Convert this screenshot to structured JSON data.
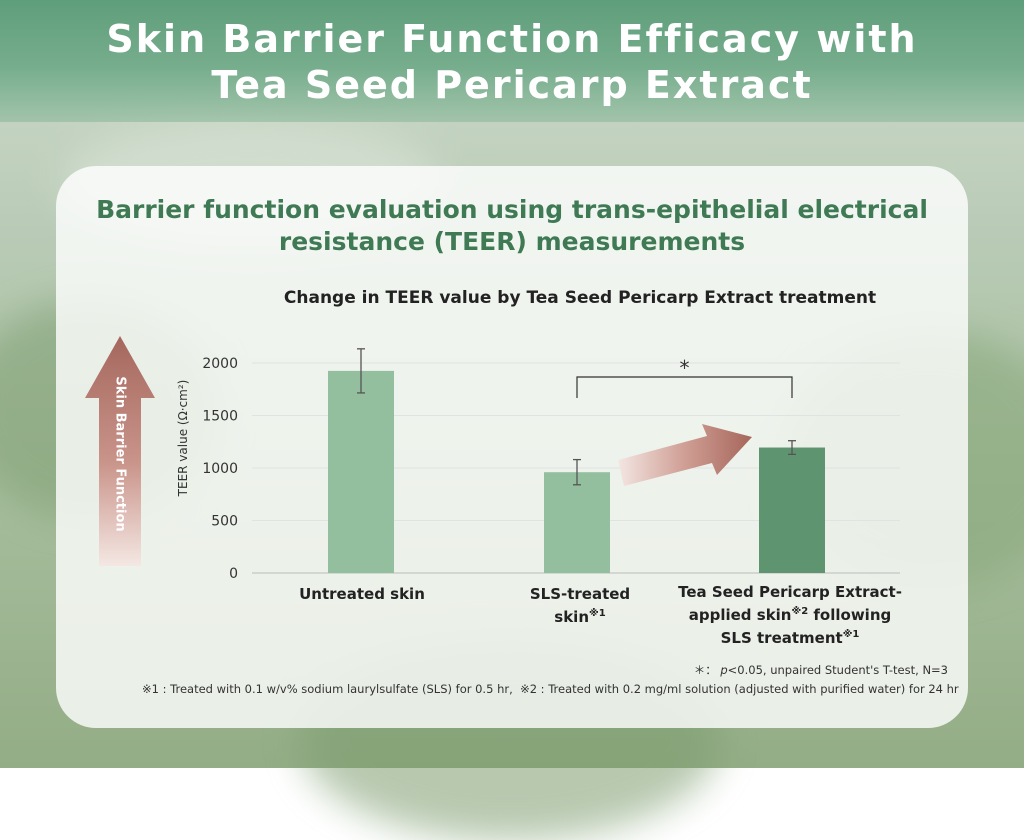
{
  "header": {
    "title_line1": "Skin Barrier Function Efficacy with",
    "title_line2": "Tea Seed Pericarp Extract"
  },
  "card": {
    "title_line1": "Barrier function evaluation using trans-epithelial electrical",
    "title_line2": "resistance (TEER) measurements"
  },
  "side_arrow_label": "Skin Barrier Function",
  "colors": {
    "light_bar": "#94bf9e",
    "dark_bar": "#5e9470",
    "title_green": "#3f7a55",
    "arrow": "#b06a5e"
  },
  "chart_data": {
    "type": "bar",
    "title": "Change in TEER value by Tea Seed Pericarp Extract treatment",
    "ylabel": "TEER value (Ω·cm²)",
    "ylim": [
      0,
      2000
    ],
    "yticks": [
      "0",
      "500",
      "1000",
      "1500",
      "2000"
    ],
    "categories": [
      "Untreated skin",
      "SLS-treated skin",
      "Tea Seed Pericarp Extract-applied skin following SLS treatment"
    ],
    "values": [
      1925,
      960,
      1195
    ],
    "errors": [
      210,
      120,
      65
    ],
    "significance": {
      "from": 1,
      "to": 2,
      "label": "*"
    }
  },
  "category_labels": {
    "c1": "Untreated skin",
    "c2_line1": "SLS-treated",
    "c2_line2": "skin",
    "c2_mark": "※1",
    "c3_line1": "Tea Seed Pericarp Extract-",
    "c3_line2": "applied skin",
    "c3_mark2": "※2",
    "c3_line2b": " following",
    "c3_line3": "SLS treatment",
    "c3_mark3": "※1"
  },
  "footnotes": {
    "stat_prefix": "＊：",
    "stat_p": "p",
    "stat_rest": "<0.05, unpaired Student's T-test, N=3",
    "note1": "※1 : Treated with 0.1 w/v% sodium laurylsulfate (SLS) for 0.5 hr,",
    "note2": "※2 : Treated with 0.2 mg/ml solution (adjusted with purified water) for 24 hr"
  }
}
